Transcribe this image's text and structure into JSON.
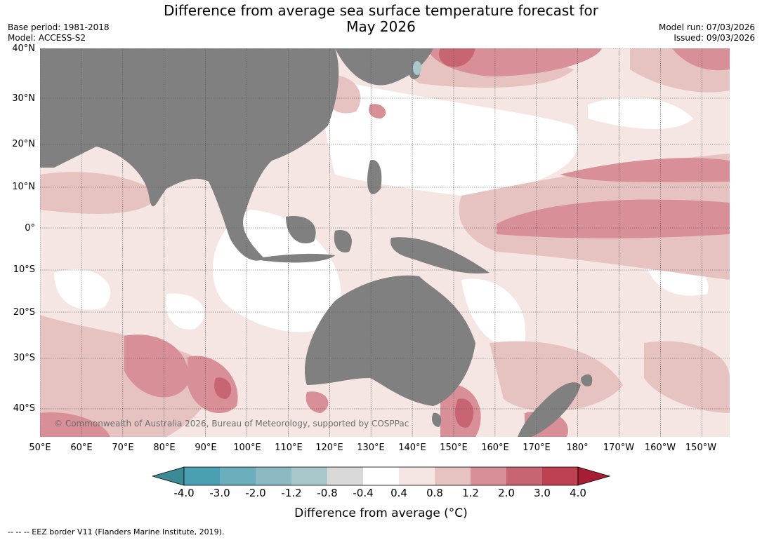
{
  "title_line1": "Difference from average sea surface temperature forecast for",
  "title_line2": "May 2026",
  "meta_left": {
    "base_period": "Base period: 1981-2018",
    "model": "Model: ACCESS-S2"
  },
  "meta_right": {
    "model_run": "Model run: 07/03/2026",
    "issued": "Issued: 09/03/2026"
  },
  "lat_labels": [
    "40°N",
    "30°N",
    "20°N",
    "10°N",
    "0°",
    "10°S",
    "20°S",
    "30°S",
    "40°S"
  ],
  "lon_labels": [
    "50°E",
    "60°E",
    "70°E",
    "80°E",
    "90°E",
    "100°E",
    "110°E",
    "120°E",
    "130°E",
    "140°E",
    "150°E",
    "160°E",
    "170°E",
    "180°",
    "170°W",
    "160°W",
    "150°W"
  ],
  "copyright": "© Commonwealth of Australia 2026, Bureau of Meteorology, supported by COSPPac",
  "colorbar": {
    "ticks": [
      "-4.0",
      "-3.0",
      "-2.0",
      "-1.2",
      "-0.8",
      "-0.4",
      "0.4",
      "0.8",
      "1.2",
      "2.0",
      "3.0",
      "4.0"
    ],
    "colors": [
      "#3d8a97",
      "#4aa0b2",
      "#6aaebb",
      "#8bb9c4",
      "#a9c8cc",
      "#d9d9d9",
      "#ffffff",
      "#f5e6e4",
      "#e6c3c1",
      "#d88f97",
      "#c86572",
      "#bd4150",
      "#a71e34"
    ],
    "label": "Difference from average (°C)"
  },
  "colors": {
    "land": "#808080",
    "ocean_neutral": "#ffffff"
  },
  "eez_note": "--  --  -- EEZ border V11 (Flanders Marine Institute, 2019)."
}
